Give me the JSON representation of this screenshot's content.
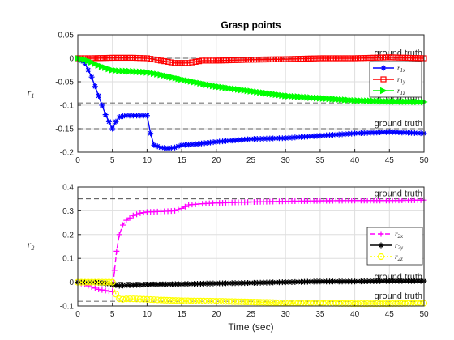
{
  "chart_data": [
    {
      "type": "line",
      "title": "Grasp points",
      "ylabel": "r_1",
      "xlabel": "",
      "xlim": [
        0,
        50
      ],
      "ylim": [
        -0.2,
        0.05
      ],
      "xticks": [
        "0",
        "5",
        "10",
        "15",
        "20",
        "25",
        "30",
        "35",
        "40",
        "45",
        "50"
      ],
      "yticks": [
        "0.05",
        "0",
        "-0.05",
        "-0.1",
        "-0.15",
        "-0.2"
      ],
      "grid": true,
      "legend_position": "right",
      "ground_truth_label": "ground truth",
      "ground_truth": [
        0,
        -0.095,
        -0.15
      ],
      "series": [
        {
          "name": "r_1x",
          "sub": "1x",
          "color": "#0000ff",
          "marker": "star",
          "x": [
            0,
            1,
            2,
            3,
            4,
            5,
            5.5,
            6,
            7,
            8,
            9,
            10,
            10.5,
            11,
            12,
            13,
            14,
            15,
            17,
            20,
            25,
            30,
            35,
            40,
            45,
            50
          ],
          "y": [
            0,
            -0.01,
            -0.04,
            -0.08,
            -0.12,
            -0.15,
            -0.135,
            -0.125,
            -0.122,
            -0.122,
            -0.122,
            -0.122,
            -0.16,
            -0.185,
            -0.19,
            -0.192,
            -0.19,
            -0.185,
            -0.183,
            -0.178,
            -0.172,
            -0.17,
            -0.165,
            -0.16,
            -0.157,
            -0.16
          ]
        },
        {
          "name": "r_1y",
          "sub": "1y",
          "color": "#ff0000",
          "marker": "square",
          "x": [
            0,
            2,
            5,
            8,
            10,
            12,
            14,
            16,
            18,
            20,
            25,
            30,
            35,
            40,
            45,
            50
          ],
          "y": [
            0,
            0,
            0.001,
            0.001,
            0,
            -0.005,
            -0.01,
            -0.01,
            -0.005,
            -0.005,
            -0.003,
            -0.002,
            0,
            0,
            0.002,
            0
          ]
        },
        {
          "name": "r_1z",
          "sub": "1z",
          "color": "#00ff00",
          "marker": "triangle",
          "x": [
            0,
            1,
            2,
            3,
            4,
            5,
            6,
            8,
            10,
            12,
            15,
            20,
            25,
            30,
            35,
            40,
            45,
            50
          ],
          "y": [
            0,
            -0.003,
            -0.008,
            -0.015,
            -0.02,
            -0.025,
            -0.027,
            -0.028,
            -0.03,
            -0.035,
            -0.045,
            -0.06,
            -0.07,
            -0.08,
            -0.085,
            -0.09,
            -0.092,
            -0.093
          ]
        }
      ]
    },
    {
      "type": "line",
      "title": "",
      "ylabel": "r_2",
      "xlabel": "Time (sec)",
      "xlim": [
        0,
        50
      ],
      "ylim": [
        -0.1,
        0.4
      ],
      "xticks": [
        "0",
        "5",
        "10",
        "15",
        "20",
        "25",
        "30",
        "35",
        "40",
        "45",
        "50"
      ],
      "yticks": [
        "0.4",
        "0.3",
        "0.2",
        "0.1",
        "0",
        "-0.1"
      ],
      "grid": true,
      "legend_position": "right",
      "ground_truth_label": "ground truth",
      "ground_truth": [
        0.35,
        0,
        -0.08
      ],
      "series": [
        {
          "name": "r_2x",
          "sub": "2x",
          "color": "#ff00ff",
          "marker": "plus",
          "dash": "6,3",
          "x": [
            0,
            1,
            2,
            3,
            4,
            5,
            5.3,
            5.6,
            6,
            6.5,
            7,
            8,
            9,
            10,
            12,
            14,
            15,
            16,
            18,
            20,
            25,
            30,
            35,
            40,
            45,
            50
          ],
          "y": [
            0,
            -0.01,
            -0.02,
            -0.03,
            -0.035,
            -0.04,
            0.05,
            0.13,
            0.2,
            0.24,
            0.26,
            0.28,
            0.29,
            0.295,
            0.297,
            0.3,
            0.31,
            0.325,
            0.33,
            0.333,
            0.337,
            0.34,
            0.342,
            0.343,
            0.343,
            0.345
          ]
        },
        {
          "name": "r_2y",
          "sub": "2y",
          "color": "#000000",
          "marker": "star",
          "x": [
            0,
            2,
            4,
            5,
            6,
            8,
            10,
            15,
            20,
            25,
            30,
            35,
            40,
            45,
            50
          ],
          "y": [
            0,
            0,
            -0.005,
            -0.01,
            -0.015,
            -0.012,
            -0.01,
            -0.008,
            -0.005,
            -0.003,
            0,
            0.003,
            0.003,
            0.005,
            0.005
          ]
        },
        {
          "name": "r_2z",
          "sub": "2z",
          "color": "#ffff00",
          "marker": "circle",
          "dash": "2,2",
          "x": [
            0,
            2,
            4,
            5,
            5.5,
            6,
            6.5,
            7,
            8,
            10,
            12,
            15,
            20,
            25,
            30,
            35,
            40,
            45,
            50
          ],
          "y": [
            0,
            0,
            0,
            0,
            -0.05,
            -0.07,
            -0.072,
            -0.07,
            -0.07,
            -0.072,
            -0.075,
            -0.078,
            -0.08,
            -0.083,
            -0.087,
            -0.088,
            -0.09,
            -0.09,
            -0.088
          ]
        }
      ]
    }
  ]
}
